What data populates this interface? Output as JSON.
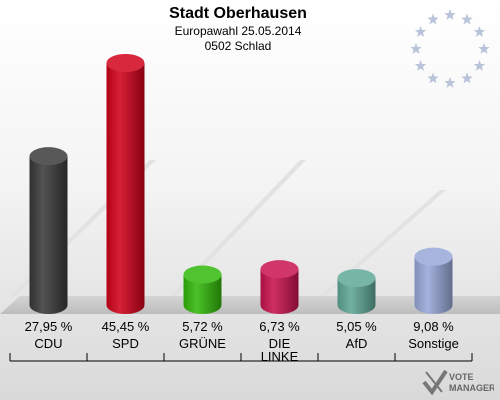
{
  "header": {
    "title": "Stadt Oberhausen",
    "subtitle": "Europawahl 25.05.2014",
    "district": "0502 Schlad"
  },
  "chart_data": {
    "type": "bar",
    "categories": [
      "CDU",
      "SPD",
      "GRÜNE",
      "DIE LINKE",
      "AfD",
      "Sonstige"
    ],
    "category_lines": [
      [
        "CDU"
      ],
      [
        "SPD"
      ],
      [
        "GRÜNE"
      ],
      [
        "DIE",
        "LINKE"
      ],
      [
        "AfD"
      ],
      [
        "Sonstige"
      ]
    ],
    "values": [
      27.95,
      45.45,
      5.72,
      6.73,
      5.05,
      9.08
    ],
    "value_labels": [
      "27,95 %",
      "45,45 %",
      "5,72 %",
      "6,73 %",
      "5,05 %",
      "9,08 %"
    ],
    "colors": [
      "#3a3a3a",
      "#d0021b",
      "#33b80b",
      "#c8134e",
      "#5fa896",
      "#98a8d8"
    ],
    "title": "Stadt Oberhausen",
    "ylim": [
      0,
      45.45
    ]
  },
  "logo": {
    "line1": "VOTE",
    "line2": "MANAGER"
  },
  "colors": {
    "stars": "#b9c3d9",
    "floor": "#c9c9c9"
  }
}
